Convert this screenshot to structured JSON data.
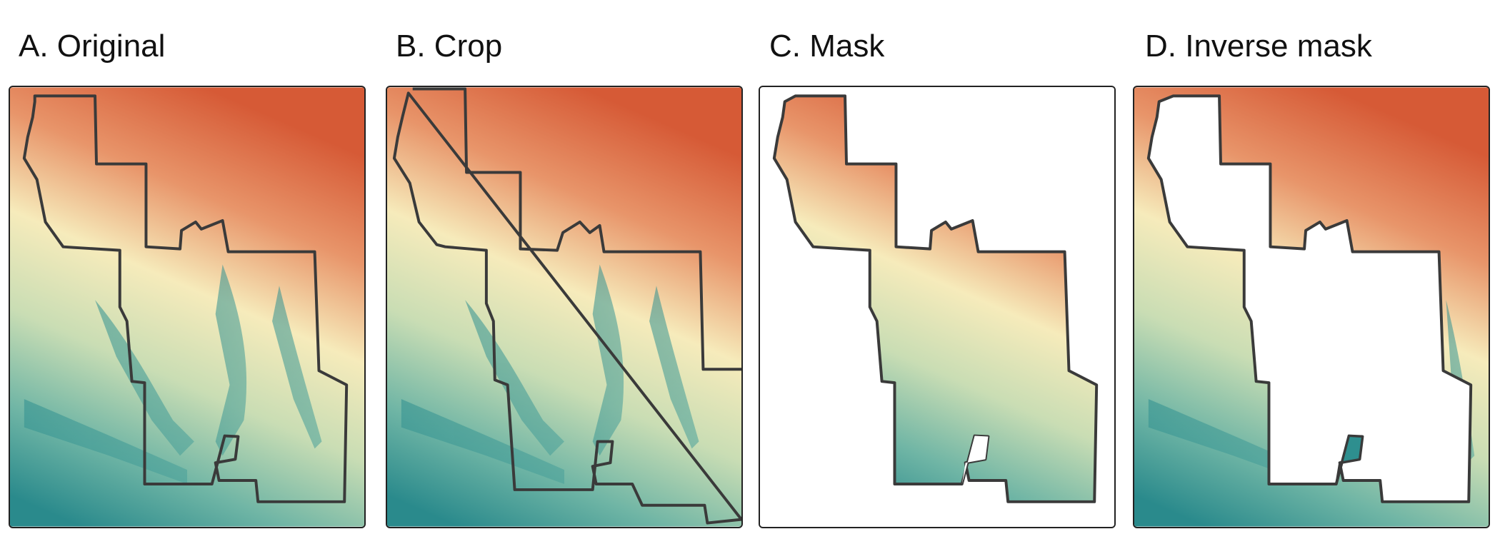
{
  "panels": [
    {
      "title": "A. Original"
    },
    {
      "title": "B. Crop"
    },
    {
      "title": "C. Mask"
    },
    {
      "title": "D. Inverse mask"
    }
  ],
  "colors": {
    "high": "#d9653b",
    "mid": "#f4ecb8",
    "low": "#2e8f8f",
    "boundary": "#3a3a3a",
    "frame": "#222222"
  }
}
